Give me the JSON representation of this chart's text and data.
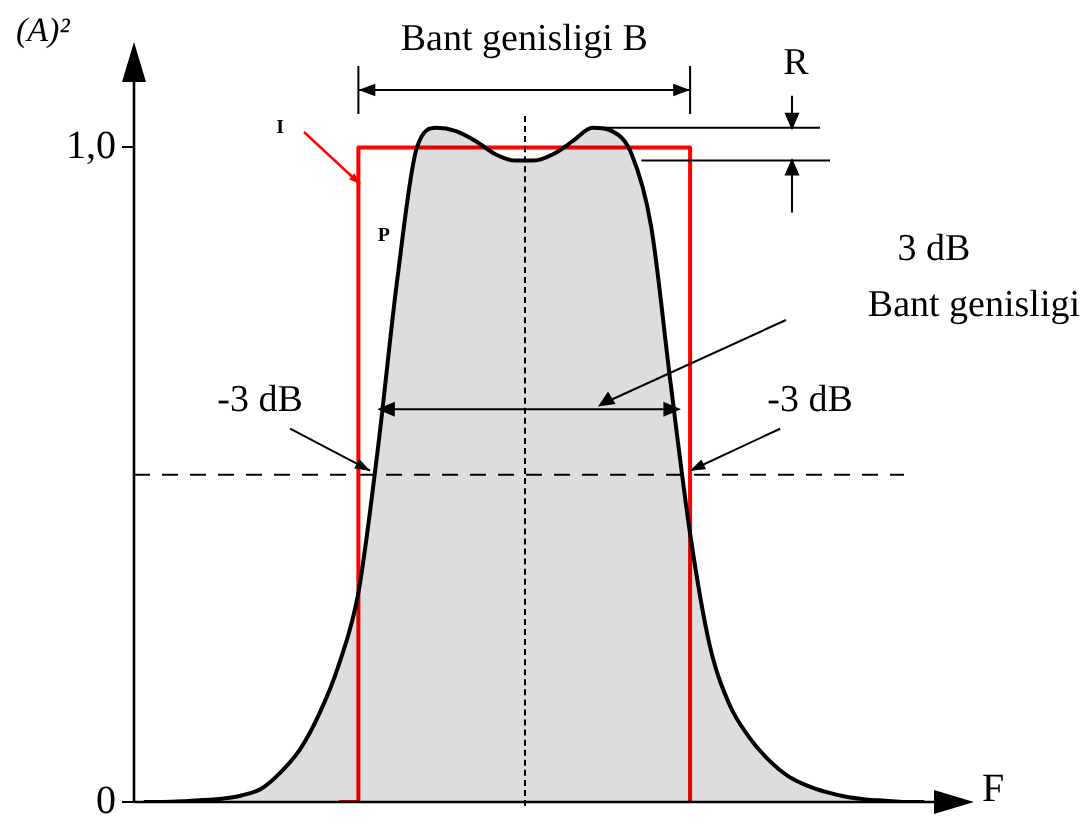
{
  "chart_data": {
    "type": "area",
    "xlabel": "F",
    "ylabel": "(A)²",
    "categories": [
      null,
      null,
      null,
      null,
      null,
      null,
      null,
      null,
      null,
      null,
      null,
      null,
      null,
      null,
      null,
      null,
      null,
      null,
      null,
      null,
      null,
      null,
      null,
      null,
      null,
      null,
      null,
      null,
      null,
      null,
      null,
      null,
      null,
      null,
      null,
      null,
      null,
      null,
      null,
      null,
      null
    ],
    "ylim": [
      0,
      1.1
    ],
    "yticks": [
      {
        "value": 0,
        "label": "0"
      },
      {
        "value": 1,
        "label": "1,0"
      }
    ],
    "legend": false,
    "marker": "none",
    "series": [
      {
        "name": "P",
        "color": "#000000",
        "values": [
          0,
          0,
          0.001,
          0.003,
          0.005,
          0.01,
          0.02,
          0.045,
          0.08,
          0.135,
          0.21,
          0.32,
          0.54,
          0.8,
          1.0,
          1.03,
          1.025,
          1.01,
          0.99,
          0.98,
          0.98,
          0.99,
          1.01,
          1.03,
          1.025,
          0.99,
          0.88,
          0.64,
          0.41,
          0.24,
          0.15,
          0.1,
          0.065,
          0.04,
          0.025,
          0.015,
          0.008,
          0.004,
          0.002,
          0,
          0
        ]
      },
      {
        "name": "I",
        "type": "step",
        "color": "#ff0000",
        "values": [
          null,
          null,
          null,
          null,
          null,
          null,
          null,
          null,
          null,
          null,
          0,
          1,
          1,
          1,
          1,
          1,
          1,
          1,
          1,
          1,
          1,
          1,
          1,
          1,
          1,
          1,
          1,
          1,
          0,
          null,
          null,
          null,
          null,
          null,
          null,
          null,
          null,
          null,
          null,
          null,
          null
        ]
      }
    ],
    "ref_lines": [
      {
        "axis": "y",
        "value": 0.5,
        "line_style": "dashed",
        "color": "#000000"
      }
    ],
    "annotations": [
      "Bant genisligi B",
      "R",
      "3 dB\nBant genisligi",
      {
        "text": "-3 dB",
        "y": 0.5
      },
      {
        "text": "-3 dB",
        "y": 0.5
      }
    ]
  }
}
